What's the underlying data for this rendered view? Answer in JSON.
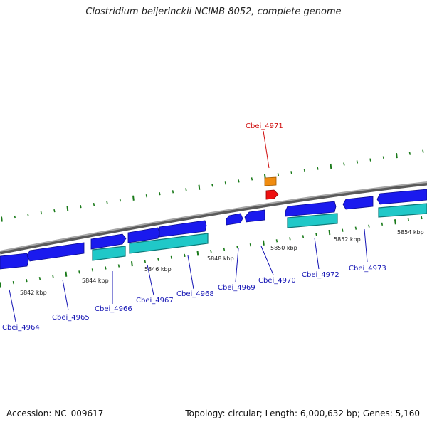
{
  "title": "Clostridium beijerinckii NCIMB 8052, complete genome",
  "footer": {
    "accession": "Accession: NC_009617",
    "summary": "Topology: circular; Length: 6,000,632 bp; Genes: 5,160"
  },
  "colors": {
    "backbone": "#8c8c8c",
    "cds": "#1a1aee",
    "cds_dark": "#0a0a90",
    "gene": "#20c8c8",
    "gene_dark": "#0d7878",
    "highlight_gene": "#f08c10",
    "highlight_cds": "#ee1010",
    "tick": "#1a7a1a",
    "label_normal": "#1414b4",
    "label_highlight": "#d01010"
  },
  "kbp_labels": [
    "5842 kbp",
    "5844 kbp",
    "5846 kbp",
    "5848 kbp",
    "5850 kbp",
    "5852 kbp",
    "5854 kbp"
  ],
  "gene_labels": [
    {
      "id": "cbei-4964",
      "text": "Cbei_4964",
      "highlight": false
    },
    {
      "id": "cbei-4965",
      "text": "Cbei_4965",
      "highlight": false
    },
    {
      "id": "cbei-4966",
      "text": "Cbei_4966",
      "highlight": false
    },
    {
      "id": "cbei-4967",
      "text": "Cbei_4967",
      "highlight": false
    },
    {
      "id": "cbei-4968",
      "text": "Cbei_4968",
      "highlight": false
    },
    {
      "id": "cbei-4969",
      "text": "Cbei_4969",
      "highlight": false
    },
    {
      "id": "cbei-4970",
      "text": "Cbei_4970",
      "highlight": false
    },
    {
      "id": "cbei-4971",
      "text": "Cbei_4971",
      "highlight": true
    },
    {
      "id": "cbei-4972",
      "text": "Cbei_4972",
      "highlight": false
    },
    {
      "id": "cbei-4973",
      "text": "Cbei_4973",
      "highlight": false
    }
  ]
}
